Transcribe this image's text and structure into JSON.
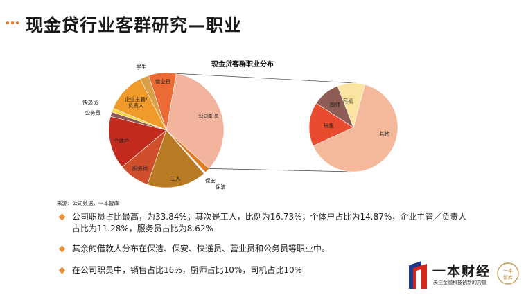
{
  "slide": {
    "title": "现金贷行业客群研究—职业",
    "source": "来源：公司数据，一本智库",
    "bullets": [
      "公司职员占比最高，为33.84%；其次是工人，比例为16.73%；个体户占比为14.87%，企业主管／负责人占比为11.28%，服务员占比为8.62%",
      "其余的借款人分布在保洁、保安、快递员、营业员和公务员等职业中。",
      "在公司职员中，销售占比16%，厨师占比10%，司机占比10%"
    ]
  },
  "brand": {
    "name": "一本财经",
    "slogan": "关注金融科技创新的力量",
    "seal_text": "一本智库"
  },
  "colors": {
    "accent": "#e8913a",
    "dots": "#e8772a"
  },
  "chart_data": {
    "type": "pie",
    "title": "现金贷客群职业分布",
    "main_pie": {
      "slices": [
        {
          "label": "公司职员",
          "value": 33.84,
          "color": "#f3b49e"
        },
        {
          "label": "保安",
          "value": 1.5,
          "color": "#e07b24"
        },
        {
          "label": "保洁",
          "value": 0.5,
          "color": "#ffffff"
        },
        {
          "label": "工人",
          "value": 16.73,
          "color": "#b87a22"
        },
        {
          "label": "服务员",
          "value": 8.62,
          "color": "#cf4f2d"
        },
        {
          "label": "个体户",
          "value": 14.87,
          "color": "#c32a1e"
        },
        {
          "label": "公务员",
          "value": 1.3,
          "color": "#8b5a55"
        },
        {
          "label": "快递员",
          "value": 1.1,
          "color": "#f6d543"
        },
        {
          "label": "企业主管/负责人",
          "value": 11.28,
          "color": "#ef9a2a"
        },
        {
          "label": "学生",
          "value": 2.5,
          "color": "#d9a048"
        },
        {
          "label": "营业员",
          "value": 7.76,
          "color": "#ec6a33"
        }
      ]
    },
    "sub_pie": {
      "parent": "公司职员",
      "slices": [
        {
          "label": "其他",
          "value": 64,
          "color": "#f4b89b"
        },
        {
          "label": "销售",
          "value": 16,
          "color": "#e94b2e"
        },
        {
          "label": "厨师",
          "value": 10,
          "color": "#8e5d55"
        },
        {
          "label": "司机",
          "value": 10,
          "color": "#fbe3a2"
        }
      ]
    }
  }
}
